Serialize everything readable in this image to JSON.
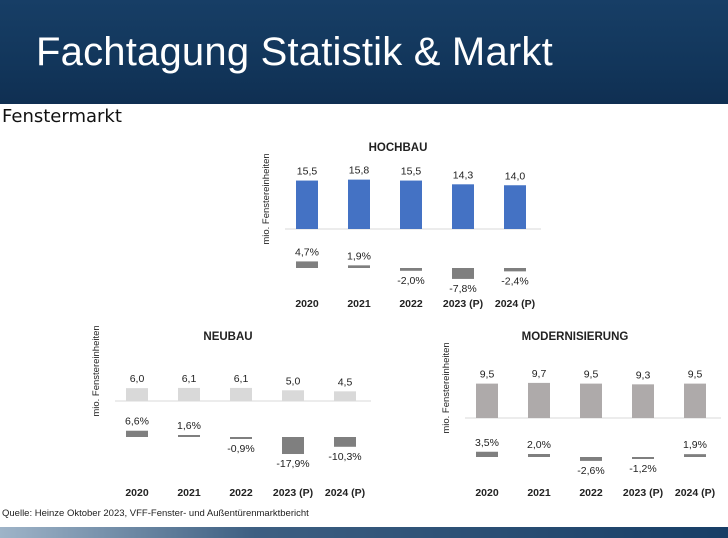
{
  "header": {
    "title": "Fachtagung Statistik & Markt"
  },
  "section": {
    "title": "Fenstermarkt"
  },
  "source": {
    "text": "Quelle: Heinze Oktober 2023, VFF-Fenster- und Außentürenmarktbericht"
  },
  "colors": {
    "banner": "#163b62",
    "hochbau_bar": "#4472c4",
    "neubau_bar": "#d9d9d9",
    "modernisierung_bar": "#aeaaaa",
    "change_bar": "#7f7f7f",
    "baseline": "#d9d9d9"
  },
  "chart_data": [
    {
      "type": "bar",
      "title": "HOCHBAU",
      "ylabel": "mio. Fenstereinheiten",
      "categories": [
        "2020",
        "2021",
        "2022",
        "2023 (P)",
        "2024 (P)"
      ],
      "series": [
        {
          "values": [
            15.5,
            15.8,
            15.5,
            14.3,
            14.0
          ],
          "labels": [
            "15,5",
            "15,8",
            "15,5",
            "14,3",
            "14,0"
          ]
        },
        {
          "values": [
            4.7,
            1.9,
            -2.0,
            -7.8,
            -2.4
          ],
          "labels": [
            "4,7%",
            "1,9%",
            "-2,0%",
            "-7,8%",
            "-2,4%"
          ]
        }
      ]
    },
    {
      "type": "bar",
      "title": "NEUBAU",
      "ylabel": "mio. Fenstereinheiten",
      "categories": [
        "2020",
        "2021",
        "2022",
        "2023 (P)",
        "2024 (P)"
      ],
      "series": [
        {
          "values": [
            6.0,
            6.1,
            6.1,
            5.0,
            4.5
          ],
          "labels": [
            "6,0",
            "6,1",
            "6,1",
            "5,0",
            "4,5"
          ]
        },
        {
          "values": [
            6.6,
            1.6,
            -0.9,
            -17.9,
            -10.3
          ],
          "labels": [
            "6,6%",
            "1,6%",
            "-0,9%",
            "-17,9%",
            "-10,3%"
          ]
        }
      ]
    },
    {
      "type": "bar",
      "title": "MODERNISIERUNG",
      "ylabel": "mio. Fenstereinheiten",
      "categories": [
        "2020",
        "2021",
        "2022",
        "2023 (P)",
        "2024 (P)"
      ],
      "series": [
        {
          "values": [
            9.5,
            9.7,
            9.5,
            9.3,
            9.5
          ],
          "labels": [
            "9,5",
            "9,7",
            "9,5",
            "9,3",
            "9,5"
          ]
        },
        {
          "values": [
            3.5,
            2.0,
            -2.6,
            -1.2,
            1.9
          ],
          "labels": [
            "3,5%",
            "2,0%",
            "-2,6%",
            "-1,2%",
            "1,9%"
          ]
        }
      ]
    }
  ]
}
